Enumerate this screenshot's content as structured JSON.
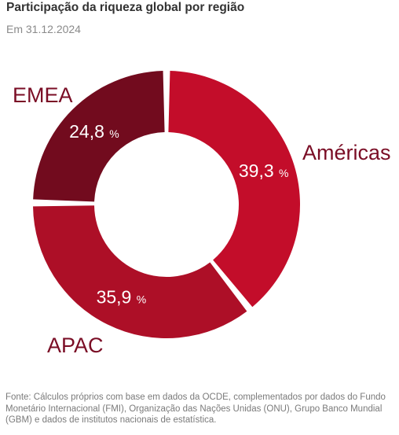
{
  "chart_data": {
    "type": "pie",
    "title": "Participação da riqueza global por região",
    "subtitle": "Em 31.12.2024",
    "slices": [
      {
        "label": "Américas",
        "value": 39.3,
        "display": "39,3",
        "color": "#c30d2a"
      },
      {
        "label": "APAC",
        "value": 35.9,
        "display": "35,9",
        "color": "#ad0f27"
      },
      {
        "label": "EMEA",
        "value": 24.8,
        "display": "24,8",
        "color": "#720b1e"
      }
    ],
    "unit": "%",
    "label_color": "#7a0d25",
    "footnote": "Fonte: Cálculos próprios com base em dados da OCDE, complementados por dados do Fundo Monetário Internacional (FMI), Organização das Nações Unidas (ONU), Grupo Banco Mundial (GBM) e dados de institutos nacionais de estatística."
  }
}
